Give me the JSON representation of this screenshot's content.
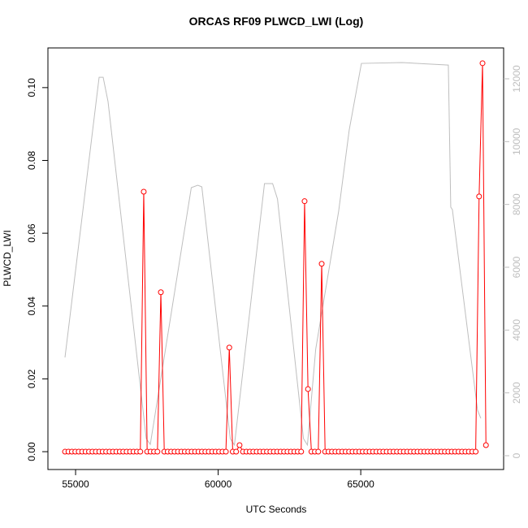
{
  "chart_data": {
    "type": "line",
    "title": "ORCAS RF09 PLWCD_LWI (Log)",
    "xlabel": "UTC Seconds",
    "ylabel": "PLWCD_LWI",
    "xlim": [
      54030,
      70010
    ],
    "xticks": [
      55000,
      60000,
      65000
    ],
    "ylim": [
      -0.0049,
      0.1109
    ],
    "yticks": [
      {
        "value": 0,
        "label": "0.00"
      },
      {
        "value": 0.02,
        "label": "0.02"
      },
      {
        "value": 0.04,
        "label": "0.04"
      },
      {
        "value": 0.06,
        "label": "0.06"
      },
      {
        "value": 0.08,
        "label": "0.08"
      },
      {
        "value": 0.1,
        "label": "0.10"
      }
    ],
    "y2lim": [
      -440,
      12983
    ],
    "y2ticks": [
      0,
      2000,
      4000,
      6000,
      8000,
      10000,
      12000
    ],
    "series": [
      {
        "color": "#ff0000",
        "x": [
          54630,
          54750,
          54870,
          54990,
          55110,
          55230,
          55350,
          55470,
          55590,
          55710,
          55830,
          55950,
          56070,
          56190,
          56310,
          56430,
          56550,
          56670,
          56790,
          56910,
          57030,
          57150,
          57270,
          57390,
          57510,
          57630,
          57750,
          57870,
          57990,
          58110,
          58230,
          58350,
          58470,
          58590,
          58710,
          58830,
          58950,
          59070,
          59190,
          59310,
          59430,
          59550,
          59670,
          59790,
          59910,
          60030,
          60150,
          60270,
          60390,
          60510,
          60630,
          60750,
          60870,
          60990,
          61110,
          61230,
          61350,
          61470,
          61590,
          61710,
          61830,
          61950,
          62070,
          62190,
          62310,
          62430,
          62550,
          62670,
          62790,
          62910,
          63030,
          63150,
          63270,
          63390,
          63510,
          63630,
          63750,
          63870,
          63990,
          64110,
          64230,
          64350,
          64470,
          64590,
          64710,
          64830,
          64950,
          65070,
          65190,
          65310,
          65430,
          65550,
          65670,
          65790,
          65910,
          66030,
          66150,
          66270,
          66390,
          66510,
          66630,
          66750,
          66870,
          66990,
          67110,
          67230,
          67350,
          67470,
          67590,
          67710,
          67830,
          67950,
          68070,
          68190,
          68310,
          68430,
          68550,
          68670,
          68790,
          68910,
          69030,
          69150,
          69270,
          69390
        ],
        "values": [
          0,
          0,
          0,
          0,
          0,
          0,
          0,
          0,
          0,
          0,
          0,
          0,
          0,
          0,
          0,
          0,
          0,
          0,
          0,
          0,
          0,
          0,
          0,
          0.0714,
          0,
          0,
          0,
          0,
          0.0438,
          0,
          0,
          0,
          0,
          0,
          0,
          0,
          0,
          0,
          0,
          0,
          0,
          0,
          0,
          0,
          0,
          0,
          0,
          0,
          0.0286,
          0,
          0,
          0.0018,
          0,
          0,
          0,
          0,
          0,
          0,
          0,
          0,
          0,
          0,
          0,
          0,
          0,
          0,
          0,
          0,
          0,
          0,
          0.0688,
          0.0172,
          0,
          0,
          0,
          0.0516,
          0,
          0,
          0,
          0,
          0,
          0,
          0,
          0,
          0,
          0,
          0,
          0,
          0,
          0,
          0,
          0,
          0,
          0,
          0,
          0,
          0,
          0,
          0,
          0,
          0,
          0,
          0,
          0,
          0,
          0,
          0,
          0,
          0,
          0,
          0,
          0,
          0,
          0,
          0,
          0,
          0,
          0,
          0,
          0,
          0,
          0.0701,
          0.1067,
          0.0018
        ]
      },
      {
        "color": "#bebebe",
        "axis": "y2",
        "x": [
          54628,
          55825,
          55967,
          56138,
          57477,
          57620,
          59057,
          59285,
          59427,
          60424,
          60570,
          61624,
          61909,
          62080,
          62991,
          63130,
          63420,
          64225,
          64595,
          65023,
          66447,
          68071,
          68156,
          68213,
          69096,
          69210
        ],
        "values": [
          3129,
          12050,
          12050,
          11275,
          543,
          360,
          8534,
          8611,
          8560,
          543,
          340,
          8663,
          8663,
          8172,
          543,
          340,
          3390,
          7784,
          10370,
          12490,
          12516,
          12438,
          7913,
          7835,
          1448,
          1190
        ]
      }
    ]
  }
}
